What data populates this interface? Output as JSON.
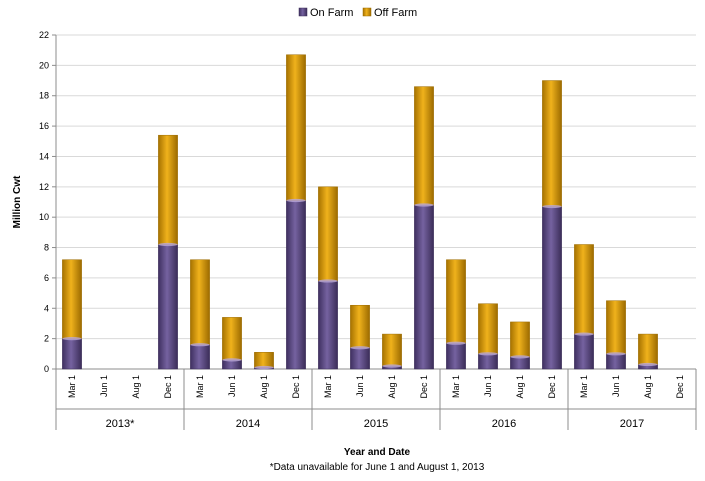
{
  "colors": {
    "on_farm": "#5e4a86",
    "off_farm": "#d99b0c",
    "grid": "#d9d9d9",
    "axis": "#8c8c8c"
  },
  "chart_data": {
    "type": "bar",
    "stacked": true,
    "ylabel": "Million Cwt",
    "xlabel": "Year and Date",
    "footnote": "*Data unavailable for June 1 and August 1, 2013",
    "ylim": [
      0,
      22
    ],
    "yticks": [
      0,
      2,
      4,
      6,
      8,
      10,
      12,
      14,
      16,
      18,
      20,
      22
    ],
    "grid": "horizontal",
    "legend": "top-center",
    "groups": [
      {
        "label": "2013*",
        "dates": [
          "Mar 1",
          "Jun 1",
          "Aug 1",
          "Dec 1"
        ]
      },
      {
        "label": "2014",
        "dates": [
          "Mar 1",
          "Jun 1",
          "Aug 1",
          "Dec 1"
        ]
      },
      {
        "label": "2015",
        "dates": [
          "Mar 1",
          "Jun 1",
          "Aug 1",
          "Dec 1"
        ]
      },
      {
        "label": "2016",
        "dates": [
          "Mar 1",
          "Jun 1",
          "Aug 1",
          "Dec 1"
        ]
      },
      {
        "label": "2017",
        "dates": [
          "Mar 1",
          "Jun 1",
          "Aug 1",
          "Dec 1"
        ]
      }
    ],
    "series": [
      {
        "name": "On Farm",
        "values": [
          2.0,
          null,
          null,
          8.2,
          1.6,
          0.6,
          0.1,
          11.1,
          5.8,
          1.4,
          0.2,
          10.8,
          1.7,
          1.0,
          0.8,
          10.7,
          2.3,
          1.0,
          0.3,
          null
        ]
      },
      {
        "name": "Off Farm",
        "values": [
          5.2,
          null,
          null,
          7.2,
          5.6,
          2.8,
          1.0,
          9.6,
          6.2,
          2.8,
          2.1,
          7.8,
          5.5,
          3.3,
          2.3,
          8.3,
          5.9,
          3.5,
          2.0,
          null
        ]
      }
    ]
  }
}
